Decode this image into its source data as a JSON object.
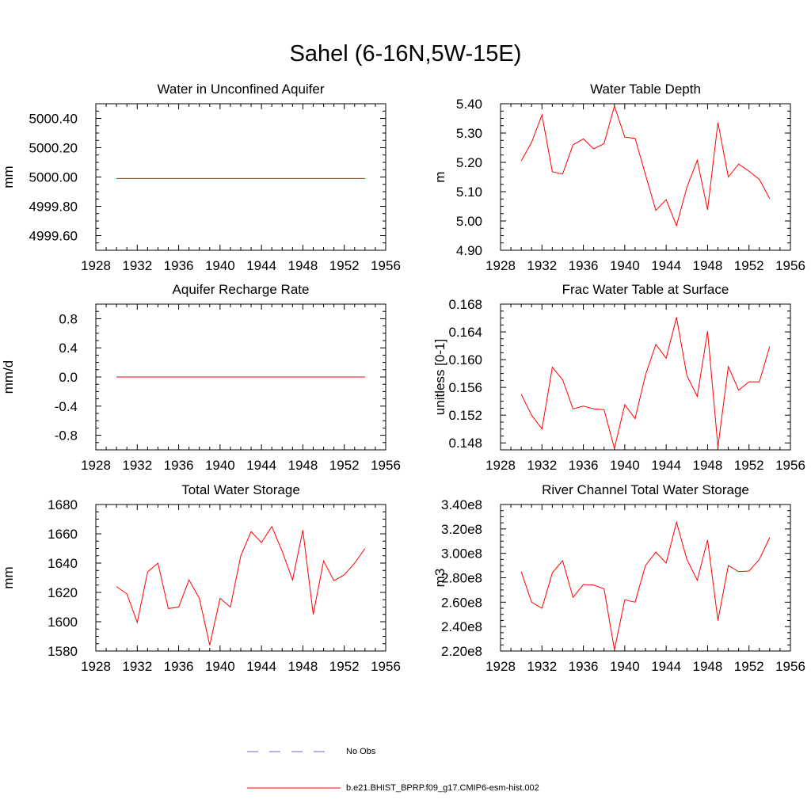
{
  "page_title": "Sahel (6-16N,5W-15E)",
  "legend": [
    {
      "label": "No Obs",
      "color": "#6666cc",
      "style": "dashed"
    },
    {
      "label": "b.e21.BHIST_BPRP.f09_g17.CMIP6-esm-hist.002",
      "color": "#ff0000",
      "style": "solid"
    }
  ],
  "chart_data": [
    {
      "type": "line",
      "title": "Water in Unconfined Aquifer",
      "xlabel": "",
      "ylabel": "mm",
      "xlim": [
        1928,
        1956
      ],
      "ylim": [
        4999.5,
        5000.5
      ],
      "x_ticks": [
        1928,
        1932,
        1936,
        1940,
        1944,
        1948,
        1952,
        1956
      ],
      "y_ticks": [
        4999.6,
        4999.8,
        5000.0,
        5000.2,
        5000.4
      ],
      "y_tick_labels": [
        "4999.60",
        "4999.80",
        "5000.00",
        "5000.20",
        "5000.40"
      ],
      "series": [
        {
          "color": "#ff0000",
          "x": [
            1930,
            1931,
            1932,
            1933,
            1934,
            1935,
            1936,
            1937,
            1938,
            1939,
            1940,
            1941,
            1942,
            1943,
            1944,
            1945,
            1946,
            1947,
            1948,
            1949,
            1950,
            1951,
            1952,
            1953,
            1954
          ],
          "values": [
            4999.99,
            4999.99,
            4999.99,
            4999.99,
            4999.99,
            4999.99,
            4999.99,
            4999.99,
            4999.99,
            4999.99,
            4999.99,
            4999.99,
            4999.99,
            4999.99,
            4999.99,
            4999.99,
            4999.99,
            4999.99,
            4999.99,
            4999.99,
            4999.99,
            4999.99,
            4999.99,
            4999.99,
            4999.99
          ]
        }
      ]
    },
    {
      "type": "line",
      "title": "Water Table Depth",
      "xlabel": "",
      "ylabel": "m",
      "xlim": [
        1928,
        1956
      ],
      "ylim": [
        4.9,
        5.4
      ],
      "x_ticks": [
        1928,
        1932,
        1936,
        1940,
        1944,
        1948,
        1952,
        1956
      ],
      "y_ticks": [
        4.9,
        5.0,
        5.1,
        5.2,
        5.3,
        5.4
      ],
      "y_tick_labels": [
        "4.90",
        "5.00",
        "5.10",
        "5.20",
        "5.30",
        "5.40"
      ],
      "series": [
        {
          "color": "#ff0000",
          "x": [
            1930,
            1931,
            1932,
            1933,
            1934,
            1935,
            1936,
            1937,
            1938,
            1939,
            1940,
            1941,
            1942,
            1943,
            1944,
            1945,
            1946,
            1947,
            1948,
            1949,
            1950,
            1951,
            1952,
            1953,
            1954
          ],
          "values": [
            5.205,
            5.268,
            5.362,
            5.168,
            5.16,
            5.26,
            5.28,
            5.246,
            5.264,
            5.392,
            5.286,
            5.282,
            5.158,
            5.036,
            5.073,
            4.984,
            5.115,
            5.207,
            5.038,
            5.336,
            5.15,
            5.194,
            5.17,
            5.142,
            5.076
          ]
        }
      ]
    },
    {
      "type": "line",
      "title": "Aquifer Recharge Rate",
      "xlabel": "",
      "ylabel": "mm/d",
      "xlim": [
        1928,
        1956
      ],
      "ylim": [
        -1.0,
        1.0
      ],
      "x_ticks": [
        1928,
        1932,
        1936,
        1940,
        1944,
        1948,
        1952,
        1956
      ],
      "y_ticks": [
        -0.8,
        -0.4,
        0.0,
        0.4,
        0.8
      ],
      "y_tick_labels": [
        "-0.8",
        "-0.4",
        "0.0",
        "0.4",
        "0.8"
      ],
      "series": [
        {
          "color": "#ff0000",
          "x": [
            1930,
            1931,
            1932,
            1933,
            1934,
            1935,
            1936,
            1937,
            1938,
            1939,
            1940,
            1941,
            1942,
            1943,
            1944,
            1945,
            1946,
            1947,
            1948,
            1949,
            1950,
            1951,
            1952,
            1953,
            1954
          ],
          "values": [
            0,
            0,
            0,
            0,
            0,
            0,
            0,
            0,
            0,
            0,
            0,
            0,
            0,
            0,
            0,
            0,
            0,
            0,
            0,
            0,
            0,
            0,
            0,
            0,
            0
          ]
        }
      ]
    },
    {
      "type": "line",
      "title": "Frac Water Table at Surface",
      "xlabel": "",
      "ylabel": "unitless [0-1]",
      "xlim": [
        1928,
        1956
      ],
      "ylim": [
        0.147,
        0.168
      ],
      "x_ticks": [
        1928,
        1932,
        1936,
        1940,
        1944,
        1948,
        1952,
        1956
      ],
      "y_ticks": [
        0.148,
        0.152,
        0.156,
        0.16,
        0.164,
        0.168
      ],
      "y_tick_labels": [
        "0.148",
        "0.152",
        "0.156",
        "0.160",
        "0.164",
        "0.168"
      ],
      "series": [
        {
          "color": "#ff0000",
          "x": [
            1930,
            1931,
            1932,
            1933,
            1934,
            1935,
            1936,
            1937,
            1938,
            1939,
            1940,
            1941,
            1942,
            1943,
            1944,
            1945,
            1946,
            1947,
            1948,
            1949,
            1950,
            1951,
            1952,
            1953,
            1954
          ],
          "values": [
            0.155,
            0.152,
            0.15,
            0.1589,
            0.1571,
            0.1529,
            0.1533,
            0.1529,
            0.1528,
            0.1472,
            0.1535,
            0.1515,
            0.1578,
            0.1622,
            0.1602,
            0.1661,
            0.1577,
            0.1547,
            0.1641,
            0.1474,
            0.159,
            0.1556,
            0.1568,
            0.1568,
            0.1619
          ]
        }
      ]
    },
    {
      "type": "line",
      "title": "Total Water Storage",
      "xlabel": "",
      "ylabel": "mm",
      "xlim": [
        1928,
        1956
      ],
      "ylim": [
        1580,
        1680
      ],
      "x_ticks": [
        1928,
        1932,
        1936,
        1940,
        1944,
        1948,
        1952,
        1956
      ],
      "y_ticks": [
        1580,
        1600,
        1620,
        1640,
        1660,
        1680
      ],
      "y_tick_labels": [
        "1580",
        "1600",
        "1620",
        "1640",
        "1660",
        "1680"
      ],
      "series": [
        {
          "color": "#ff0000",
          "x": [
            1930,
            1931,
            1932,
            1933,
            1934,
            1935,
            1936,
            1937,
            1938,
            1939,
            1940,
            1941,
            1942,
            1943,
            1944,
            1945,
            1946,
            1947,
            1948,
            1949,
            1950,
            1951,
            1952,
            1953,
            1954
          ],
          "values": [
            1624,
            1619,
            1599.5,
            1634,
            1640,
            1609,
            1610,
            1628.5,
            1616,
            1584,
            1616,
            1610,
            1645,
            1661.5,
            1654,
            1665,
            1648,
            1628.5,
            1662.5,
            1605,
            1641.5,
            1628,
            1632,
            1640,
            1650
          ]
        }
      ]
    },
    {
      "type": "line",
      "title": "River Channel Total Water Storage",
      "xlabel": "",
      "ylabel": "m3",
      "xlim": [
        1928,
        1956
      ],
      "ylim": [
        220000000.0,
        340000000.0
      ],
      "x_ticks": [
        1928,
        1932,
        1936,
        1940,
        1944,
        1948,
        1952,
        1956
      ],
      "y_ticks": [
        220000000.0,
        240000000.0,
        260000000.0,
        280000000.0,
        300000000.0,
        320000000.0,
        340000000.0
      ],
      "y_tick_labels": [
        "2.20e8",
        "2.40e8",
        "2.60e8",
        "2.80e8",
        "3.00e8",
        "3.20e8",
        "3.40e8"
      ],
      "series": [
        {
          "color": "#ff0000",
          "x": [
            1930,
            1931,
            1932,
            1933,
            1934,
            1935,
            1936,
            1937,
            1938,
            1939,
            1940,
            1941,
            1942,
            1943,
            1944,
            1945,
            1946,
            1947,
            1948,
            1949,
            1950,
            1951,
            1952,
            1953,
            1954
          ],
          "values": [
            285000000.0,
            260000000.0,
            255000000.0,
            284000000.0,
            294000000.0,
            264000000.0,
            274500000.0,
            274000000.0,
            271000000.0,
            221000000.0,
            262000000.0,
            260000000.0,
            290000000.0,
            301000000.0,
            292000000.0,
            325500000.0,
            295000000.0,
            278000000.0,
            311000000.0,
            245000000.0,
            290000000.0,
            285000000.0,
            285500000.0,
            295000000.0,
            313000000.0
          ]
        }
      ]
    }
  ]
}
